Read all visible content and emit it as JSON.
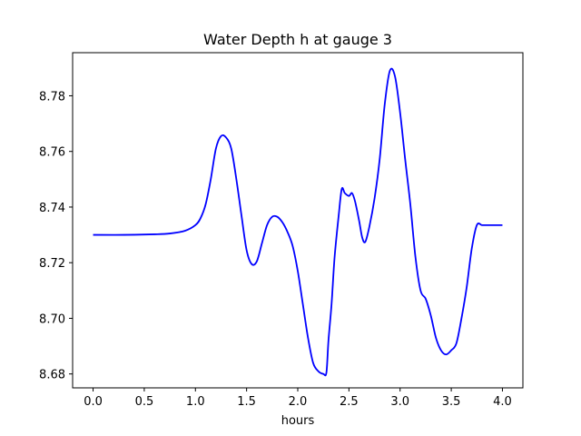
{
  "chart_data": {
    "type": "line",
    "title": "Water Depth h at gauge 3",
    "xlabel": "hours",
    "ylabel": "",
    "xlim": [
      -0.2,
      4.2
    ],
    "ylim": [
      8.675,
      8.7955
    ],
    "grid": false,
    "x_ticks": [
      0.0,
      0.5,
      1.0,
      1.5,
      2.0,
      2.5,
      3.0,
      3.5,
      4.0
    ],
    "x_tick_labels": [
      "0.0",
      "0.5",
      "1.0",
      "1.5",
      "2.0",
      "2.5",
      "3.0",
      "3.5",
      "4.0"
    ],
    "y_ticks": [
      8.68,
      8.7,
      8.72,
      8.74,
      8.76,
      8.78
    ],
    "y_tick_labels": [
      "8.68",
      "8.70",
      "8.72",
      "8.74",
      "8.76",
      "8.78"
    ],
    "series": [
      {
        "color": "#0000ff",
        "x": [
          0.0,
          0.3,
          0.6,
          0.75,
          0.9,
          1.0,
          1.05,
          1.1,
          1.15,
          1.2,
          1.25,
          1.3,
          1.35,
          1.4,
          1.45,
          1.5,
          1.55,
          1.6,
          1.65,
          1.7,
          1.75,
          1.8,
          1.85,
          1.9,
          1.95,
          2.0,
          2.05,
          2.1,
          2.15,
          2.2,
          2.25,
          2.28,
          2.3,
          2.33,
          2.36,
          2.4,
          2.43,
          2.46,
          2.5,
          2.53,
          2.56,
          2.6,
          2.63,
          2.66,
          2.7,
          2.75,
          2.8,
          2.85,
          2.9,
          2.95,
          3.0,
          3.05,
          3.1,
          3.15,
          3.2,
          3.25,
          3.3,
          3.35,
          3.4,
          3.45,
          3.5,
          3.55,
          3.6,
          3.65,
          3.7,
          3.75,
          3.8,
          3.85,
          3.9,
          3.95,
          4.0
        ],
        "values": [
          8.73,
          8.73,
          8.7302,
          8.7305,
          8.7315,
          8.7335,
          8.736,
          8.741,
          8.75,
          8.761,
          8.7655,
          8.765,
          8.761,
          8.75,
          8.737,
          8.7245,
          8.7195,
          8.7205,
          8.727,
          8.7335,
          8.7365,
          8.7365,
          8.7345,
          8.731,
          8.726,
          8.717,
          8.705,
          8.693,
          8.684,
          8.681,
          8.68,
          8.6805,
          8.692,
          8.705,
          8.722,
          8.737,
          8.7465,
          8.745,
          8.744,
          8.745,
          8.742,
          8.735,
          8.729,
          8.7275,
          8.733,
          8.743,
          8.757,
          8.777,
          8.789,
          8.787,
          8.774,
          8.757,
          8.741,
          8.722,
          8.71,
          8.707,
          8.701,
          8.693,
          8.6885,
          8.687,
          8.6885,
          8.691,
          8.7,
          8.711,
          8.725,
          8.7335,
          8.7335,
          8.7335,
          8.7335,
          8.7335,
          8.7335
        ]
      }
    ]
  }
}
